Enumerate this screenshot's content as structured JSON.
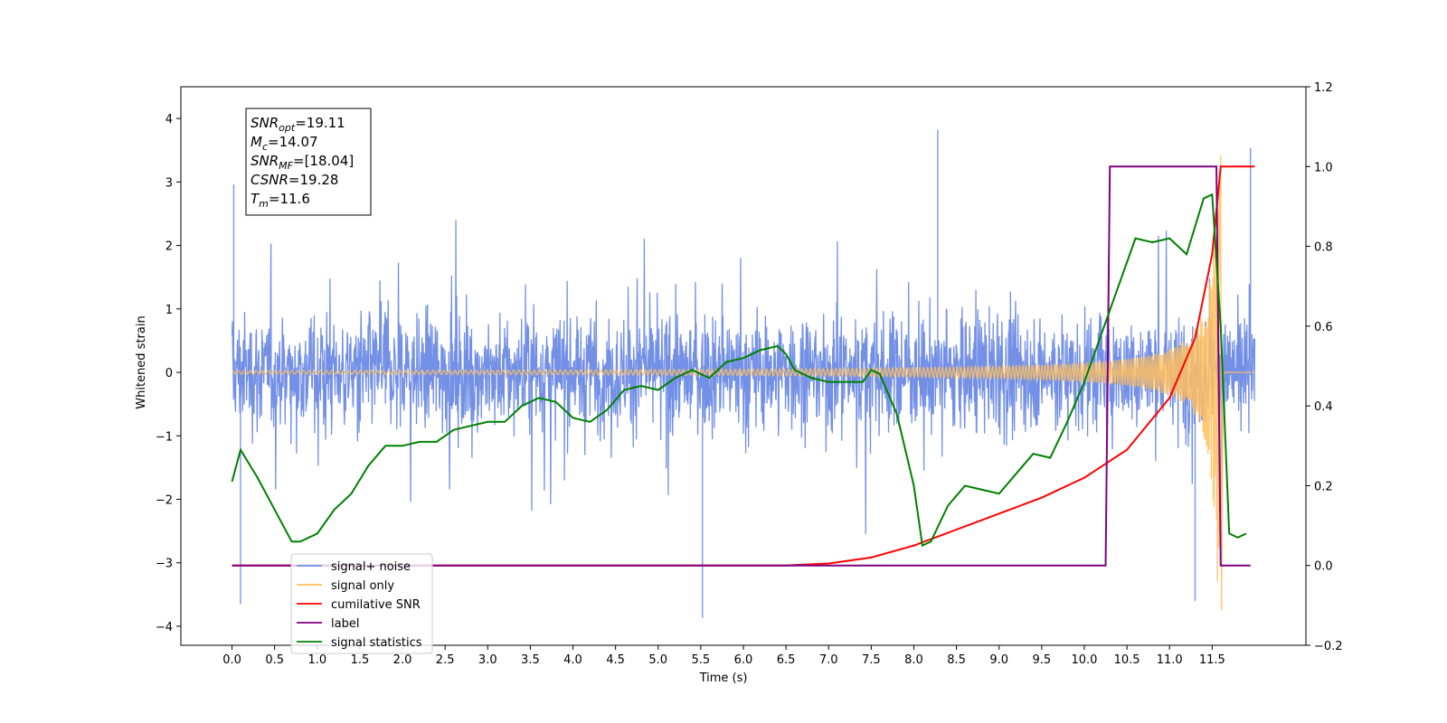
{
  "chart_data": {
    "type": "line",
    "title": "",
    "xlabel": "Time (s)",
    "ylabel": "Whitened strain",
    "xlim": [
      -0.6,
      12.6
    ],
    "ylim": [
      -4.3,
      4.5
    ],
    "ylim_right": [
      -0.2,
      1.2
    ],
    "x_ticks": [
      0,
      0.5,
      1,
      1.5,
      2,
      2.5,
      3,
      3.5,
      4,
      4.5,
      5,
      5.5,
      6,
      6.5,
      7,
      7.5,
      8,
      8.5,
      9,
      9.5,
      10,
      10.5,
      11,
      11.5
    ],
    "x_tick_labels": [
      "0.0",
      "0.5",
      "1.0",
      "1.5",
      "2.0",
      "2.5",
      "3.0",
      "3.5",
      "4.0",
      "4.5",
      "5.0",
      "5.5",
      "6.0",
      "6.5",
      "7.0",
      "7.5",
      "8.0",
      "8.5",
      "9.0",
      "9.5",
      "10.0",
      "10.5",
      "11.0",
      "11.5"
    ],
    "y_ticks": [
      -4,
      -3,
      -2,
      -1,
      0,
      1,
      2,
      3,
      4
    ],
    "y_tick_labels": [
      "−4",
      "−3",
      "−2",
      "−1",
      "0",
      "1",
      "2",
      "3",
      "4"
    ],
    "y_right_ticks": [
      -0.2,
      0.0,
      0.2,
      0.4,
      0.6,
      0.8,
      1.0,
      1.2
    ],
    "y_right_tick_labels": [
      "−0.2",
      "0.0",
      "0.2",
      "0.4",
      "0.6",
      "0.8",
      "1.0",
      "1.2"
    ],
    "grid": false,
    "legend_position": "lower-left",
    "info_box": {
      "lines": [
        {
          "main": "SNR",
          "sub": "opt",
          "rest": "=19.11"
        },
        {
          "main": "M",
          "sub": "c",
          "rest": "=14.07"
        },
        {
          "main": "SNR",
          "sub": "MF",
          "rest": "=[18.04]"
        },
        {
          "main": "CSNR",
          "sub": "",
          "rest": "=19.28"
        },
        {
          "main": "T",
          "sub": "m",
          "rest": "=11.6"
        }
      ]
    },
    "series": [
      {
        "name": "signal+ noise",
        "axis": "left",
        "color": "#7390e6",
        "kind": "noise-band",
        "x_range": [
          0,
          12.0
        ],
        "typical_range": [
          -1.6,
          1.6
        ],
        "max": 3.82,
        "min": -3.87,
        "notable_peaks": [
          [
            0.02,
            2.96
          ],
          [
            0.1,
            -3.65
          ],
          [
            5.52,
            -3.87
          ],
          [
            8.28,
            3.82
          ],
          [
            11.95,
            3.54
          ],
          [
            11.3,
            -3.6
          ]
        ]
      },
      {
        "name": "signal only",
        "axis": "left",
        "color": "#ffbf5f",
        "kind": "chirp",
        "x_range": [
          0,
          12.0
        ],
        "merger_time": 11.6,
        "peak_value": 3.42,
        "trough_value": -3.75
      },
      {
        "name": "cumilative SNR",
        "axis": "right",
        "color": "#ff0000",
        "x": [
          0,
          6.5,
          7.0,
          7.5,
          8.0,
          8.5,
          9.0,
          9.5,
          10.0,
          10.5,
          11.0,
          11.3,
          11.5,
          11.6,
          12.0
        ],
        "values": [
          0.0,
          0.0,
          0.005,
          0.02,
          0.05,
          0.09,
          0.13,
          0.17,
          0.22,
          0.29,
          0.42,
          0.57,
          0.78,
          1.0,
          1.0
        ]
      },
      {
        "name": "label",
        "axis": "right",
        "color": "#800080",
        "x": [
          0,
          10.25,
          10.3,
          11.55,
          11.6,
          11.95
        ],
        "values": [
          0,
          0,
          1,
          1,
          0,
          0
        ]
      },
      {
        "name": "signal statistics",
        "axis": "right",
        "color": "#008000",
        "x": [
          0,
          0.1,
          0.3,
          0.5,
          0.7,
          0.8,
          1.0,
          1.2,
          1.4,
          1.6,
          1.8,
          2.0,
          2.2,
          2.4,
          2.6,
          2.8,
          3.0,
          3.2,
          3.4,
          3.6,
          3.8,
          4.0,
          4.2,
          4.4,
          4.6,
          4.8,
          5.0,
          5.2,
          5.4,
          5.6,
          5.8,
          6.0,
          6.2,
          6.4,
          6.5,
          6.6,
          6.8,
          7.0,
          7.2,
          7.4,
          7.5,
          7.6,
          7.8,
          8.0,
          8.1,
          8.2,
          8.4,
          8.6,
          8.8,
          9.0,
          9.2,
          9.4,
          9.6,
          9.8,
          10.0,
          10.2,
          10.4,
          10.6,
          10.8,
          11.0,
          11.2,
          11.4,
          11.5,
          11.6,
          11.7,
          11.8,
          11.9
        ],
        "values": [
          0.21,
          0.29,
          0.22,
          0.14,
          0.06,
          0.06,
          0.08,
          0.14,
          0.18,
          0.25,
          0.3,
          0.3,
          0.31,
          0.31,
          0.34,
          0.35,
          0.36,
          0.36,
          0.4,
          0.42,
          0.41,
          0.37,
          0.36,
          0.39,
          0.44,
          0.45,
          0.44,
          0.47,
          0.49,
          0.47,
          0.51,
          0.52,
          0.54,
          0.55,
          0.53,
          0.49,
          0.47,
          0.46,
          0.46,
          0.46,
          0.49,
          0.48,
          0.38,
          0.2,
          0.05,
          0.06,
          0.15,
          0.2,
          0.19,
          0.18,
          0.23,
          0.28,
          0.27,
          0.36,
          0.46,
          0.58,
          0.7,
          0.82,
          0.81,
          0.82,
          0.78,
          0.92,
          0.93,
          0.6,
          0.08,
          0.07,
          0.08
        ]
      }
    ]
  }
}
